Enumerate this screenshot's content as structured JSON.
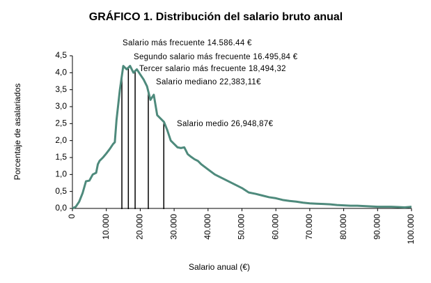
{
  "chart_data": {
    "type": "line",
    "title": "GRÁFICO 1. Distribución del salario bruto anual",
    "x_label": "Salario anual (€)",
    "y_label": "Porcentaje de asalariados",
    "color": "#4e8a7c",
    "x": [
      0,
      1000,
      2000,
      3000,
      4000,
      5000,
      6000,
      7000,
      7500,
      8000,
      9000,
      10000,
      11000,
      12000,
      12500,
      13000,
      14000,
      15000,
      16000,
      17000,
      18000,
      19000,
      20000,
      21000,
      22000,
      23000,
      24000,
      25000,
      26000,
      27000,
      28000,
      29000,
      30000,
      31000,
      32000,
      33000,
      34000,
      35000,
      36000,
      37000,
      38000,
      40000,
      42000,
      44000,
      46000,
      48000,
      50000,
      52000,
      54000,
      56000,
      58000,
      60000,
      62000,
      64000,
      66000,
      68000,
      70000,
      72000,
      74000,
      76000,
      78000,
      80000,
      82000,
      84000,
      86000,
      88000,
      90000,
      92000,
      94000,
      96000,
      98000,
      100000
    ],
    "values": [
      0,
      0.05,
      0.2,
      0.45,
      0.8,
      0.82,
      1.0,
      1.05,
      1.3,
      1.4,
      1.5,
      1.62,
      1.75,
      1.9,
      1.95,
      2.6,
      3.5,
      4.2,
      4.1,
      4.2,
      4.0,
      4.1,
      3.95,
      3.8,
      3.6,
      3.2,
      3.35,
      2.75,
      2.65,
      2.55,
      2.3,
      2.0,
      1.9,
      1.8,
      1.78,
      1.8,
      1.6,
      1.52,
      1.45,
      1.4,
      1.3,
      1.15,
      1.0,
      0.9,
      0.8,
      0.7,
      0.6,
      0.47,
      0.43,
      0.38,
      0.33,
      0.3,
      0.25,
      0.22,
      0.2,
      0.17,
      0.15,
      0.14,
      0.13,
      0.12,
      0.1,
      0.09,
      0.08,
      0.08,
      0.07,
      0.06,
      0.05,
      0.05,
      0.05,
      0.04,
      0.03,
      0.05
    ],
    "xlim": [
      0,
      100000
    ],
    "ylim": [
      0,
      4.5
    ],
    "xticks": [
      0,
      {
        "value": 10000,
        "label": "10.000"
      },
      {
        "value": 20000,
        "label": "20.000"
      },
      {
        "value": 30000,
        "label": "30.000"
      },
      {
        "value": 40000,
        "label": "40.000"
      },
      {
        "value": 50000,
        "label": "50.000"
      },
      {
        "value": 60000,
        "label": "60.000"
      },
      {
        "value": 70000,
        "label": "70.000"
      },
      {
        "value": 80000,
        "label": "80.000"
      },
      {
        "value": 90000,
        "label": "90.000"
      },
      {
        "value": 100000,
        "label": "100.000"
      }
    ],
    "yticks": [
      {
        "value": 0,
        "label": "0,0"
      },
      {
        "value": 0.5,
        "label": "0,5"
      },
      {
        "value": 1,
        "label": "1,0"
      },
      {
        "value": 1.5,
        "label": "1,5"
      },
      {
        "value": 2,
        "label": "2,0"
      },
      {
        "value": 2.5,
        "label": "2,5"
      },
      {
        "value": 3,
        "label": "3,0"
      },
      {
        "value": 3.5,
        "label": "3,5"
      },
      {
        "value": 4,
        "label": "4,0"
      },
      {
        "value": 4.5,
        "label": "4,5"
      }
    ],
    "annotations": [
      {
        "text": "Salario más frecuente 14.586.44 €",
        "x": 14586.44
      },
      {
        "text": "Segundo salario más frecuente 16.495,84 €",
        "x": 16495.84
      },
      {
        "text": "Tercer salario más frecuente 18,494,32",
        "x": 18494.32
      },
      {
        "text": "Salario mediano 22,383,11€",
        "x": 22383.11
      },
      {
        "text": "Salario medio 26,948,87€",
        "x": 26948.87
      }
    ]
  }
}
